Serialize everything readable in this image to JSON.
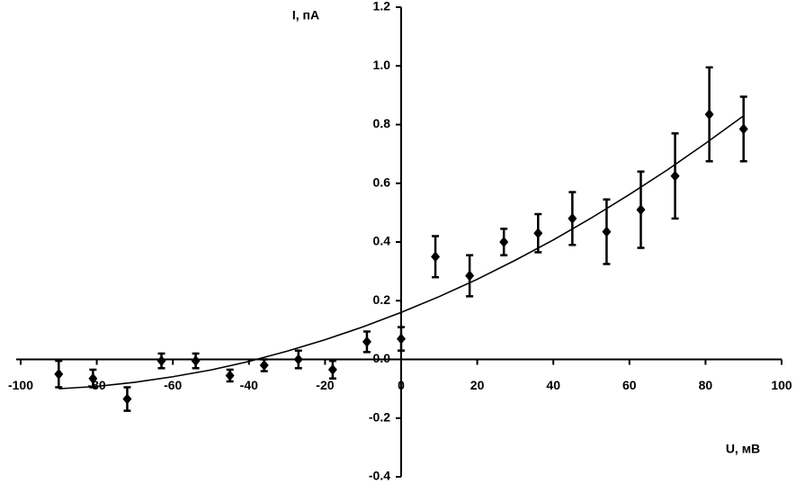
{
  "chart_data": {
    "type": "scatter",
    "xlabel": "U, мВ",
    "ylabel": "I, пА",
    "xlim": [
      -100,
      100
    ],
    "ylim": [
      -0.4,
      1.2
    ],
    "xticks": [
      -100,
      -80,
      -60,
      -40,
      -20,
      0,
      20,
      40,
      60,
      80,
      100
    ],
    "yticks": [
      -0.4,
      -0.2,
      {
        "value": 0,
        "label": "0.0"
      },
      0.2,
      0.4,
      0.6,
      0.8,
      {
        "value": 1,
        "label": "1.0"
      },
      1.2
    ],
    "grid": false,
    "series": [
      {
        "color": "#000000",
        "x": [
          -90,
          -81,
          -72,
          -63,
          -54,
          -45,
          -36,
          -27,
          -18,
          -9,
          0,
          9,
          18,
          27,
          36,
          45,
          54,
          63,
          72,
          81,
          90
        ],
        "values": [
          -0.05,
          -0.065,
          -0.135,
          -0.005,
          -0.005,
          -0.055,
          -0.02,
          0.0,
          -0.035,
          0.06,
          0.07,
          0.35,
          0.285,
          0.4,
          0.43,
          0.48,
          0.435,
          0.51,
          0.625,
          0.835,
          0.785
        ],
        "errors": [
          0.045,
          0.03,
          0.04,
          0.025,
          0.025,
          0.02,
          0.02,
          0.03,
          0.03,
          0.035,
          0.04,
          0.07,
          0.07,
          0.045,
          0.065,
          0.09,
          0.11,
          0.13,
          0.145,
          0.16,
          0.11
        ]
      },
      {
        "color": "#000000",
        "line": true,
        "x": [
          -90,
          -80,
          -70,
          -60,
          -50,
          -40,
          -30,
          -20,
          -10,
          0,
          10,
          20,
          30,
          40,
          50,
          60,
          70,
          80,
          90
        ],
        "values": [
          -0.1,
          -0.092,
          -0.078,
          -0.059,
          -0.036,
          -0.007,
          0.028,
          0.067,
          0.111,
          0.16,
          0.214,
          0.273,
          0.338,
          0.407,
          0.482,
          0.562,
          0.646,
          0.736,
          0.83
        ]
      }
    ]
  }
}
